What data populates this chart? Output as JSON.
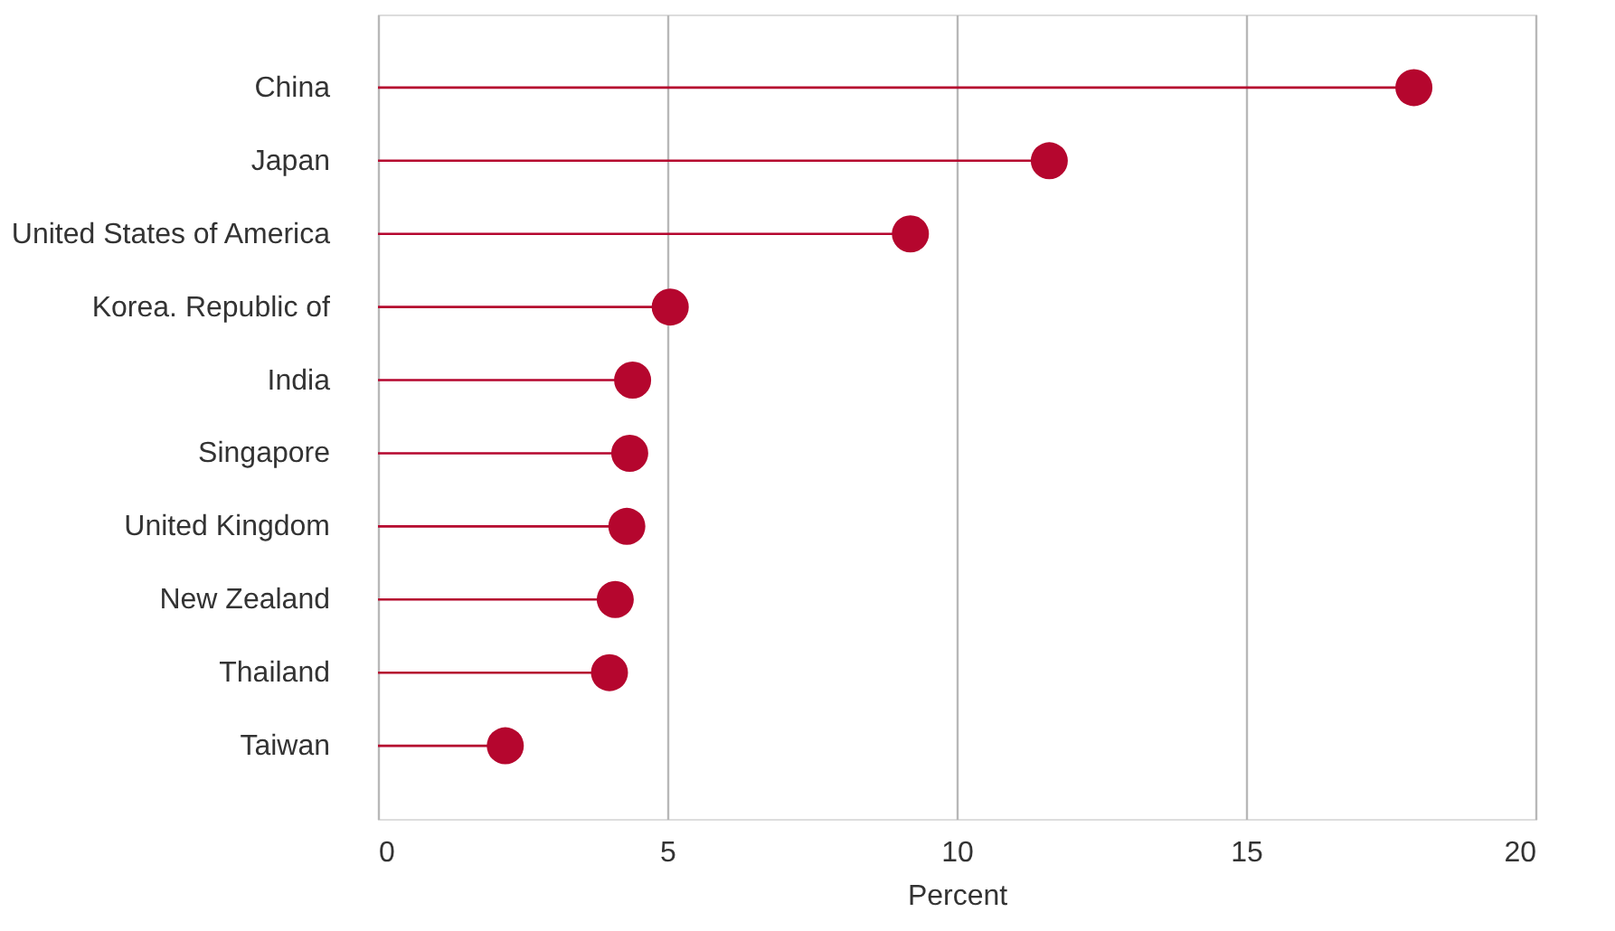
{
  "chart_data": {
    "type": "lollipop",
    "orientation": "horizontal",
    "xlabel": "Percent",
    "categories": [
      "China",
      "Japan",
      "United States of America",
      "Korea. Republic of",
      "India",
      "Singapore",
      "United Kingdom",
      "New Zealand",
      "Thailand",
      "Taiwan"
    ],
    "values": [
      17.9,
      11.6,
      9.2,
      5.05,
      4.4,
      4.35,
      4.3,
      4.1,
      4.0,
      2.2
    ],
    "color": "#b5062e",
    "xlim": [
      0,
      20
    ],
    "xticks": [
      0,
      5,
      10,
      15,
      20
    ],
    "grid": "x",
    "marker": "circle"
  }
}
